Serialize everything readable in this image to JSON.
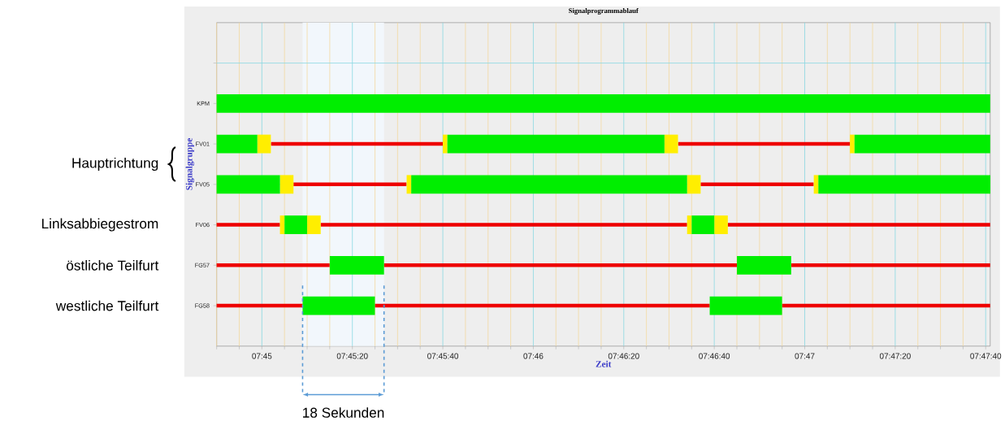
{
  "chart_data": {
    "type": "bar",
    "orientation": "horizontal",
    "title": "Signalprogrammablauf",
    "xlabel": "Zeit",
    "ylabel": "Signalgruppe",
    "categories": [
      null,
      "KPM",
      "FV01",
      "FV05",
      "FV06",
      "FG57",
      "FG58"
    ],
    "series": [
      {
        "color": "#ee0000",
        "base": [
          null,
          null,
          7.75056,
          7.75194,
          7.74722,
          7.74722,
          7.74722
        ],
        "values": [
          null,
          null,
          0.01056,
          0.00694,
          0.00389,
          0.00694,
          0.00528
        ]
      },
      {
        "color": "#ee0000",
        "base": [
          null,
          null,
          7.77556,
          7.77694,
          7.75361,
          7.7575,
          7.75694
        ],
        "values": [
          null,
          null,
          0.01056,
          0.00694,
          0.0225,
          0.02167,
          0.02056
        ]
      },
      {
        "color": "#ee0000",
        "base": [
          null,
          null,
          null,
          null,
          7.77861,
          7.7825,
          7.78194
        ],
        "values": [
          null,
          null,
          null,
          null,
          0.01611,
          0.01222,
          0.01278
        ]
      },
      {
        "color": "#ffee00",
        "base": [
          null,
          null,
          7.74972,
          7.75111,
          7.75278,
          null,
          null
        ],
        "values": [
          null,
          null,
          0.00083,
          0.00083,
          0.00083,
          null,
          null
        ]
      },
      {
        "color": "#ffee00",
        "base": [
          null,
          null,
          7.77472,
          7.77611,
          7.77778,
          null,
          null
        ],
        "values": [
          null,
          null,
          0.00083,
          0.00083,
          0.00083,
          null,
          null
        ]
      },
      {
        "color": "#ffee00",
        "base": [
          null,
          null,
          7.76111,
          7.75889,
          7.75111,
          null,
          null
        ],
        "values": [
          null,
          null,
          0.00028,
          0.00028,
          0.00028,
          null,
          null
        ]
      },
      {
        "color": "#ffee00",
        "base": [
          null,
          null,
          7.78611,
          7.78389,
          7.77611,
          null,
          null
        ],
        "values": [
          null,
          null,
          0.00028,
          0.00028,
          0.00028,
          null,
          null
        ]
      },
      {
        "color": "#00ee00",
        "base": [
          null,
          7.74722,
          7.74722,
          7.74722,
          7.75139,
          7.75417,
          7.7525
        ],
        "values": [
          null,
          0.0475,
          0.0025,
          0.00389,
          0.00139,
          0.00333,
          0.00444
        ]
      },
      {
        "color": "#00ee00",
        "base": [
          null,
          null,
          7.76139,
          7.75917,
          7.77639,
          7.77917,
          7.7775
        ],
        "values": [
          null,
          null,
          0.01333,
          0.01694,
          0.00139,
          0.00333,
          0.00444
        ]
      },
      {
        "color": "#00ee00",
        "base": [
          null,
          null,
          7.78639,
          7.78417,
          null,
          null,
          null
        ],
        "values": [
          null,
          null,
          0.00833,
          0.01056,
          null,
          null,
          null
        ]
      }
    ],
    "xlim": [
      7.747222,
      7.794722
    ],
    "xticks": [
      {
        "value": 7.747222,
        "label": null
      },
      {
        "value": 7.748611,
        "label": null
      },
      {
        "value": 7.75,
        "label": "07:45"
      },
      {
        "value": 7.751389,
        "label": null
      },
      {
        "value": 7.752778,
        "label": null
      },
      {
        "value": 7.754167,
        "label": null
      },
      {
        "value": 7.755556,
        "label": "07:45:20"
      },
      {
        "value": 7.756944,
        "label": null
      },
      {
        "value": 7.758333,
        "label": null
      },
      {
        "value": 7.759722,
        "label": null
      },
      {
        "value": 7.761111,
        "label": "07:45:40"
      },
      {
        "value": 7.7625,
        "label": null
      },
      {
        "value": 7.763889,
        "label": null
      },
      {
        "value": 7.765278,
        "label": null
      },
      {
        "value": 7.766667,
        "label": "07:46"
      },
      {
        "value": 7.768056,
        "label": null
      },
      {
        "value": 7.769444,
        "label": null
      },
      {
        "value": 7.770833,
        "label": null
      },
      {
        "value": 7.772222,
        "label": "07:46:20"
      },
      {
        "value": 7.773611,
        "label": null
      },
      {
        "value": 7.775,
        "label": null
      },
      {
        "value": 7.776389,
        "label": null
      },
      {
        "value": 7.777778,
        "label": "07:46:40"
      },
      {
        "value": 7.779167,
        "label": null
      },
      {
        "value": 7.780556,
        "label": null
      },
      {
        "value": 7.781944,
        "label": null
      },
      {
        "value": 7.783333,
        "label": "07:47"
      },
      {
        "value": 7.784722,
        "label": null
      },
      {
        "value": 7.786111,
        "label": null
      },
      {
        "value": 7.7875,
        "label": null
      },
      {
        "value": 7.788889,
        "label": "07:47:20"
      },
      {
        "value": 7.790278,
        "label": null
      },
      {
        "value": 7.791667,
        "label": null
      },
      {
        "value": 7.793056,
        "label": null
      },
      {
        "value": 7.794444,
        "label": "07:47:40"
      }
    ],
    "grid": true,
    "bands": [
      {
        "axis": "x",
        "from": 7.7525,
        "to": 7.7575,
        "label": "18 Sekunden"
      }
    ],
    "annotations": [
      "Hauptrichtung",
      "Linksabbiegestrom",
      "östliche Teilfurt",
      "westliche Teilfurt"
    ]
  }
}
